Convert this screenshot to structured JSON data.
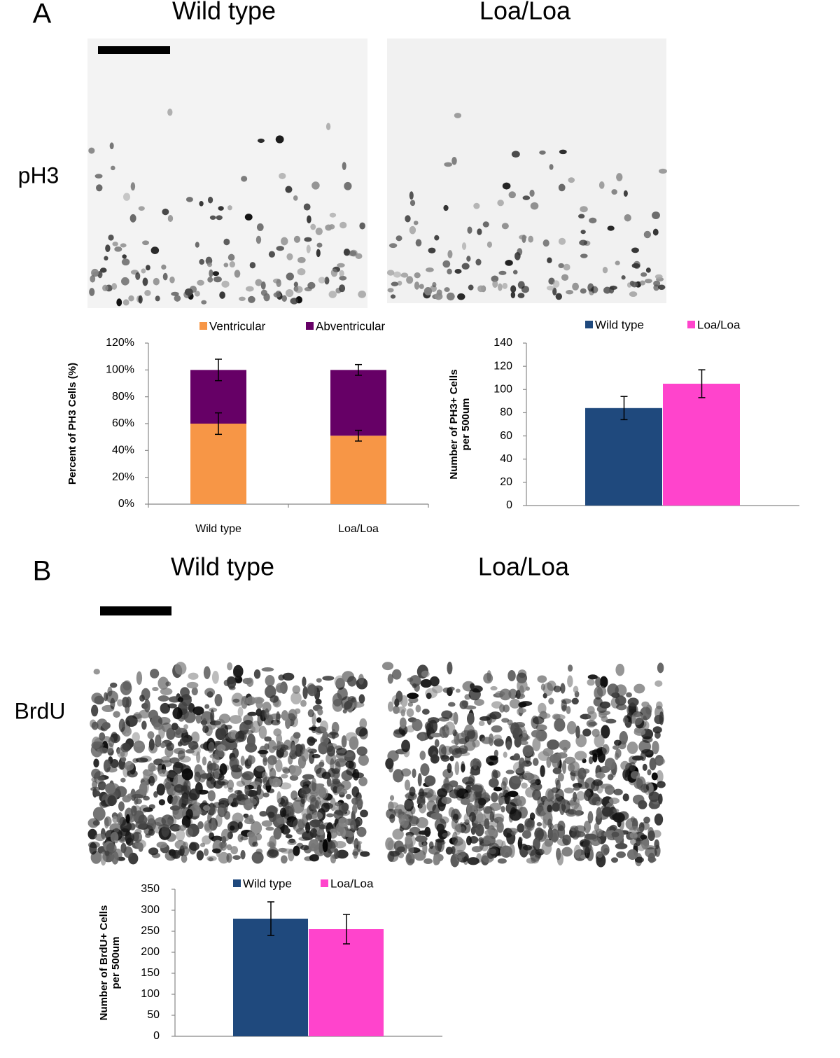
{
  "panels": [
    {
      "label": "A",
      "row_label": "pH3",
      "image_titles": [
        "Wild type",
        "Loa/Loa"
      ]
    },
    {
      "label": "B",
      "row_label": "BrdU",
      "image_titles": [
        "Wild type",
        "Loa/Loa"
      ]
    }
  ],
  "chart_data": [
    {
      "type": "stacked_bar",
      "y_label": "Percent of PH3 Cells (%)",
      "categories": [
        "Wild type",
        "Loa/Loa"
      ],
      "series": [
        {
          "name": "Ventricular",
          "color": "#f79646",
          "values": [
            60,
            51
          ],
          "errors": [
            8,
            4
          ]
        },
        {
          "name": "Abventricular",
          "color": "#660066",
          "values": [
            40,
            49
          ],
          "errors": [
            8,
            4
          ]
        }
      ],
      "ylim": [
        0,
        120
      ],
      "yticks": [
        {
          "value": 0,
          "label": "0%"
        },
        {
          "value": 20,
          "label": "20%"
        },
        {
          "value": 40,
          "label": "40%"
        },
        {
          "value": 60,
          "label": "60%"
        },
        {
          "value": 80,
          "label": "80%"
        },
        {
          "value": 100,
          "label": "100%"
        },
        {
          "value": 120,
          "label": "120%"
        }
      ]
    },
    {
      "type": "bar",
      "y_label": "Number of PH3+ Cells per 500um",
      "series": [
        {
          "name": "Wild type",
          "color": "#1f497d",
          "values": [
            84
          ],
          "errors": [
            10
          ]
        },
        {
          "name": "Loa/Loa",
          "color": "#ff44cc",
          "values": [
            105
          ],
          "errors": [
            12
          ]
        }
      ],
      "ylim": [
        0,
        140
      ],
      "yticks": [
        0,
        20,
        40,
        60,
        80,
        100,
        120,
        140
      ]
    },
    {
      "type": "bar",
      "y_label": "Number of BrdU+ Cells per 500um",
      "series": [
        {
          "name": "Wild type",
          "color": "#1f497d",
          "values": [
            280
          ],
          "errors": [
            40
          ]
        },
        {
          "name": "Loa/Loa",
          "color": "#ff44cc",
          "values": [
            255
          ],
          "errors": [
            35
          ]
        }
      ],
      "ylim": [
        0,
        350
      ],
      "yticks": [
        0,
        50,
        100,
        150,
        200,
        250,
        300,
        350
      ]
    }
  ]
}
